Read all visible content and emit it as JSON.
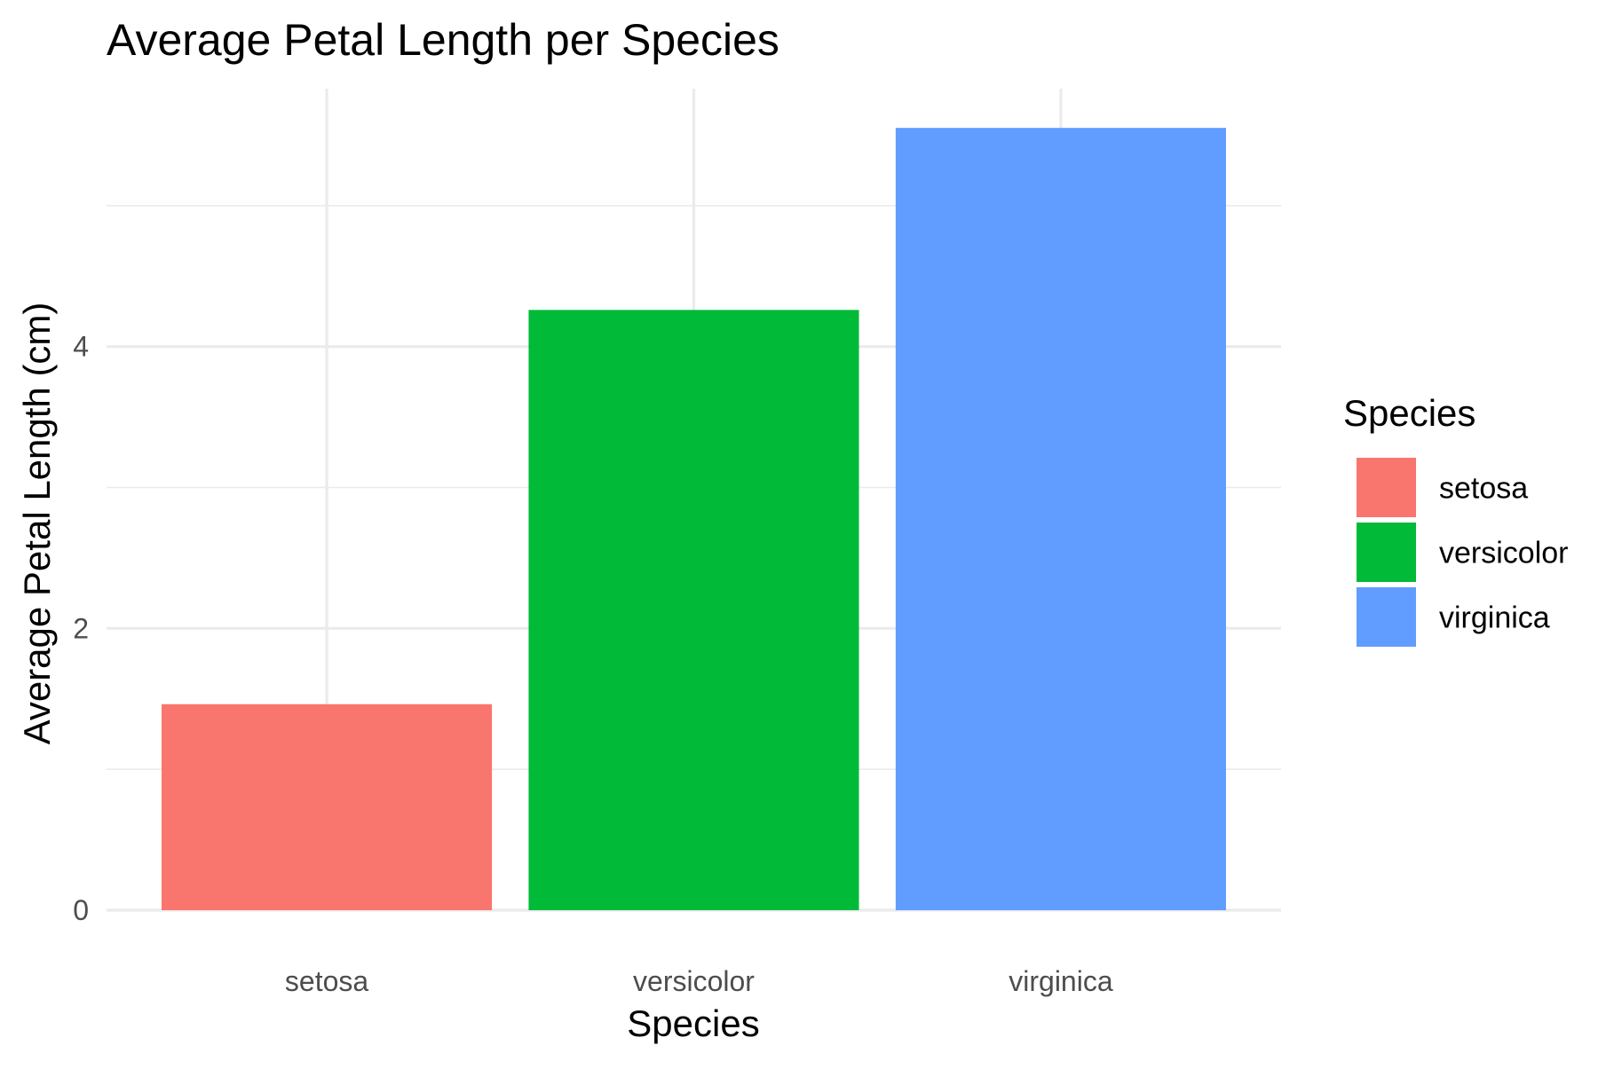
{
  "chart_data": {
    "type": "bar",
    "title": "Average Petal Length per Species",
    "xlabel": "Species",
    "ylabel": "Average Petal Length (cm)",
    "categories": [
      "setosa",
      "versicolor",
      "virginica"
    ],
    "values": [
      1.462,
      4.26,
      5.552
    ],
    "colors": [
      "#F8766D",
      "#00BA38",
      "#619CFF"
    ],
    "ylim": [
      0,
      5.83
    ],
    "yticks": [
      0,
      2,
      4
    ],
    "yticks_minor": [
      1,
      3,
      5
    ],
    "grid": true,
    "legend": {
      "title": "Species",
      "position": "right",
      "items": [
        "setosa",
        "versicolor",
        "virginica"
      ]
    }
  }
}
